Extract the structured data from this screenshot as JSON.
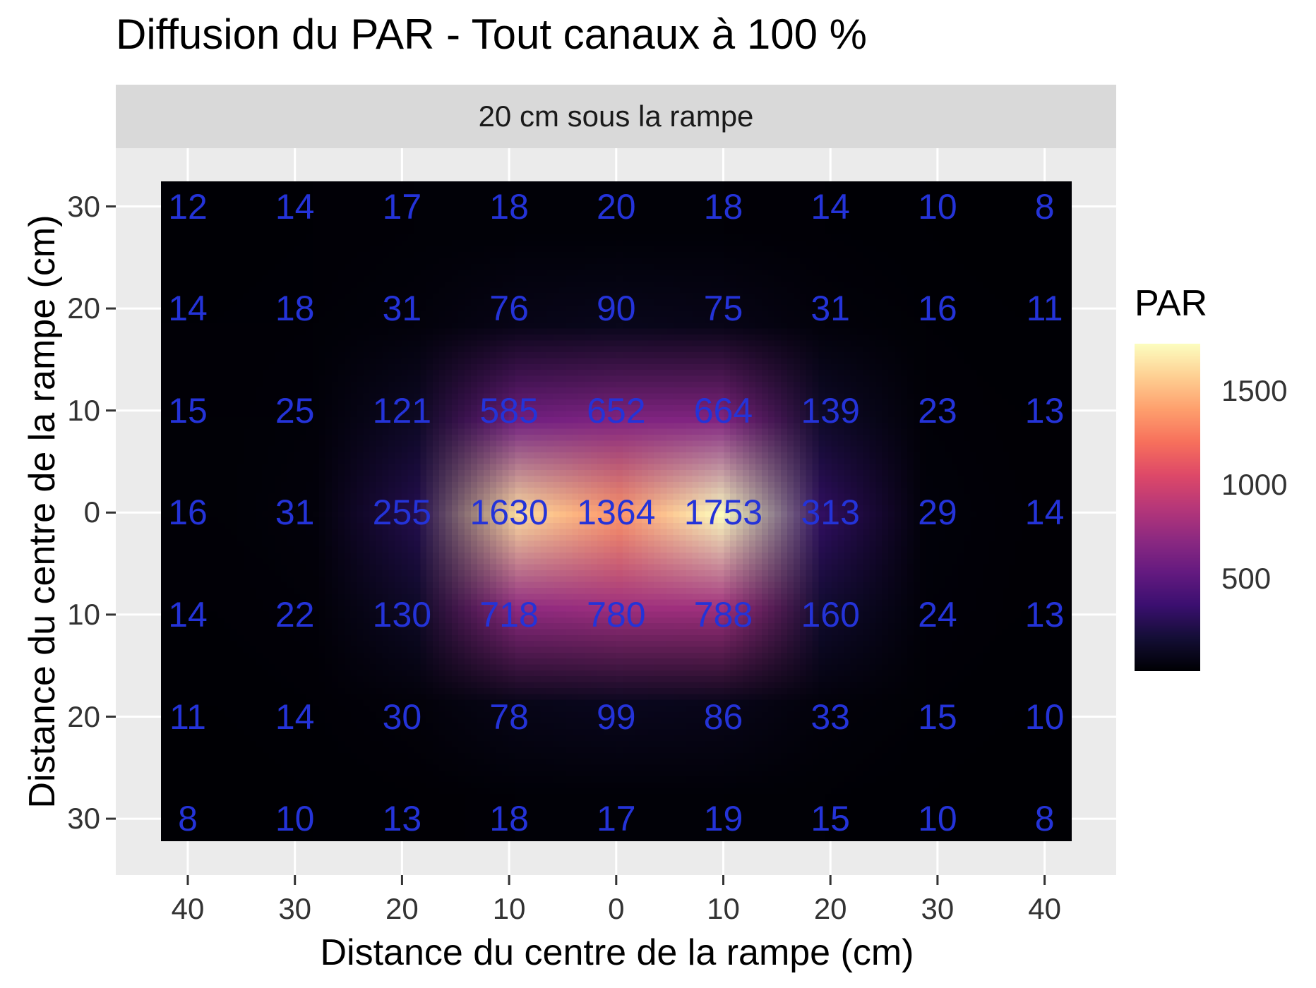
{
  "chart_data": {
    "type": "heatmap",
    "title": "Diffusion du PAR - Tout canaux à 100 %",
    "facet_label": "20 cm sous la rampe",
    "xlabel": "Distance du centre de la rampe (cm)",
    "ylabel": "Distance du centre de la rampe (cm)",
    "x": [
      -40,
      -30,
      -20,
      -10,
      0,
      10,
      20,
      30,
      40
    ],
    "y": [
      30,
      20,
      10,
      0,
      -10,
      -20,
      -30
    ],
    "x_tick_labels": [
      "40",
      "30",
      "20",
      "10",
      "0",
      "10",
      "20",
      "30",
      "40"
    ],
    "y_tick_labels": [
      "30",
      "20",
      "10",
      "0",
      "10",
      "20",
      "30"
    ],
    "values": [
      [
        12,
        14,
        17,
        18,
        20,
        18,
        14,
        10,
        8
      ],
      [
        14,
        18,
        31,
        76,
        90,
        75,
        31,
        16,
        11
      ],
      [
        15,
        25,
        121,
        585,
        652,
        664,
        139,
        23,
        13
      ],
      [
        16,
        31,
        255,
        1630,
        1364,
        1753,
        313,
        29,
        14
      ],
      [
        14,
        22,
        130,
        718,
        780,
        788,
        160,
        24,
        13
      ],
      [
        11,
        14,
        30,
        78,
        99,
        86,
        33,
        15,
        10
      ],
      [
        8,
        10,
        13,
        18,
        17,
        19,
        15,
        10,
        8
      ]
    ],
    "colorscale": "magma",
    "legend": {
      "title": "PAR",
      "ticks": [
        500,
        1000,
        1500
      ],
      "tick_labels": [
        "500",
        "1000",
        "1500"
      ],
      "range": [
        8,
        1753
      ],
      "placement": "right"
    },
    "label_color": "#2433d8",
    "grid": true
  }
}
